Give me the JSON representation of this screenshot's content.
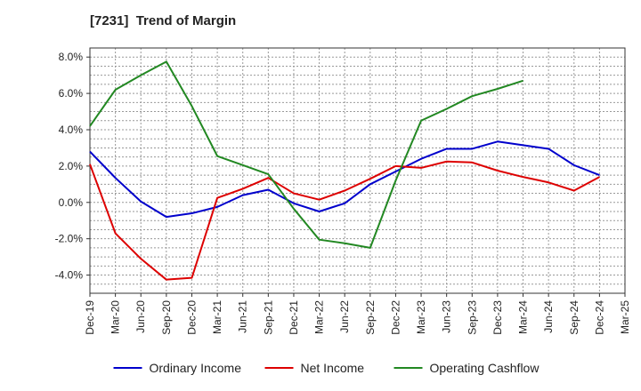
{
  "chart_data": {
    "type": "line",
    "title": "[7231]  Trend of Margin",
    "xlabel": "",
    "ylabel": "",
    "categories": [
      "Dec-19",
      "Mar-20",
      "Jun-20",
      "Sep-20",
      "Dec-20",
      "Mar-21",
      "Jun-21",
      "Sep-21",
      "Dec-21",
      "Mar-22",
      "Jun-22",
      "Sep-22",
      "Dec-22",
      "Mar-23",
      "Jun-23",
      "Sep-23",
      "Dec-23",
      "Mar-24",
      "Jun-24",
      "Sep-24",
      "Dec-24",
      "Mar-25"
    ],
    "ylim": [
      -5.0,
      8.5
    ],
    "yticks": [
      -4.0,
      -2.0,
      0.0,
      2.0,
      4.0,
      6.0,
      8.0
    ],
    "ytick_labels": [
      "-4.0%",
      "-2.0%",
      "0.0%",
      "2.0%",
      "4.0%",
      "6.0%",
      "8.0%"
    ],
    "grid": true,
    "legend_position": "bottom",
    "series": [
      {
        "name": "Ordinary Income",
        "color": "#0000cc",
        "values": [
          2.8,
          1.35,
          0.05,
          -0.8,
          -0.6,
          -0.25,
          0.4,
          0.7,
          -0.05,
          -0.5,
          -0.05,
          1.0,
          1.7,
          2.4,
          2.95,
          2.95,
          3.35,
          3.15,
          2.95,
          2.05,
          1.5,
          null
        ]
      },
      {
        "name": "Net Income",
        "color": "#dd0000",
        "values": [
          2.1,
          -1.7,
          -3.1,
          -4.25,
          -4.15,
          0.25,
          0.75,
          1.35,
          0.5,
          0.15,
          0.65,
          1.3,
          2.0,
          1.9,
          2.25,
          2.2,
          1.75,
          1.4,
          1.1,
          0.65,
          1.4,
          null
        ]
      },
      {
        "name": "Operating Cashflow",
        "color": "#228822",
        "values": [
          4.2,
          6.2,
          7.0,
          7.75,
          5.3,
          2.55,
          2.05,
          1.55,
          -0.35,
          -2.05,
          -2.25,
          -2.5,
          1.2,
          4.5,
          5.15,
          5.85,
          6.25,
          6.7,
          null,
          null,
          null,
          null
        ]
      }
    ]
  }
}
